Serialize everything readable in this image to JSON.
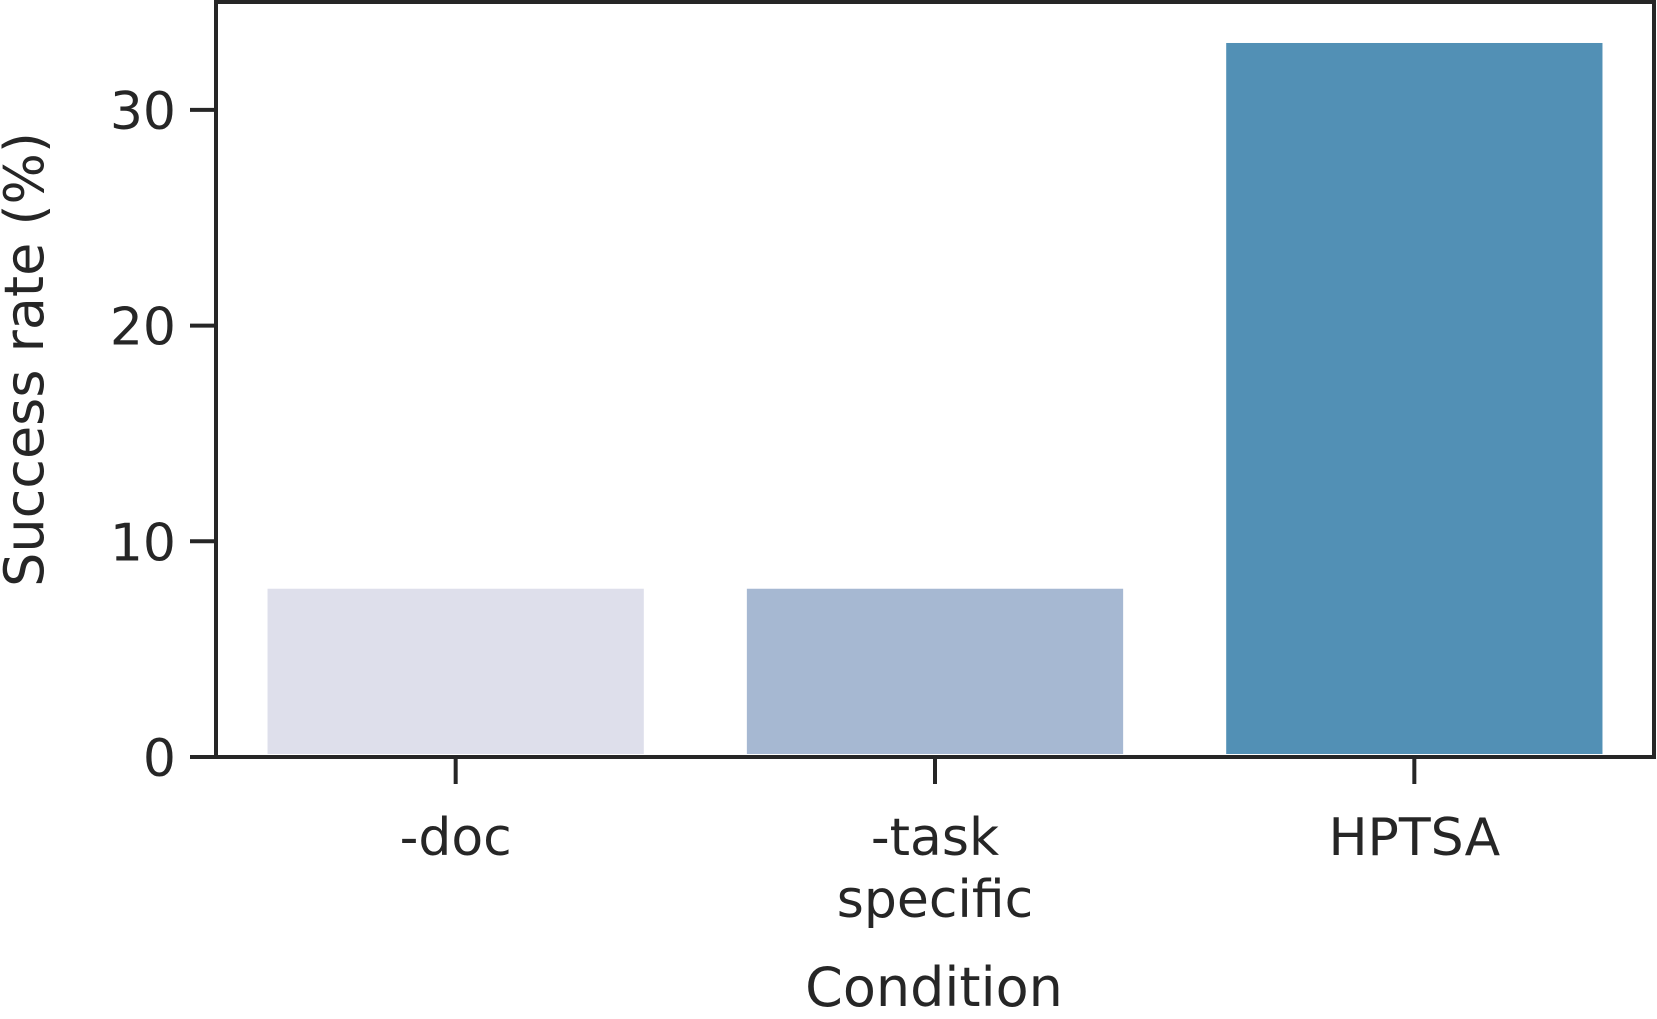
{
  "chart_data": {
    "type": "bar",
    "title": "",
    "xlabel": "Condition",
    "ylabel": "Success rate (%)",
    "categories": [
      "-doc",
      "-task specific",
      "HPTSA"
    ],
    "category_label_lines": [
      [
        "-doc"
      ],
      [
        "-task",
        "specific"
      ],
      [
        "HPTSA"
      ]
    ],
    "values": [
      7.8,
      7.8,
      33.1
    ],
    "colors": [
      "#dedfeb",
      "#a6b8d2",
      "#5290b5"
    ],
    "ylim": [
      0,
      35
    ],
    "yticks": [
      0,
      10,
      20,
      30
    ],
    "ytick_labels": [
      "0",
      "10",
      "20",
      "30"
    ],
    "grid": false,
    "legend": "none"
  }
}
